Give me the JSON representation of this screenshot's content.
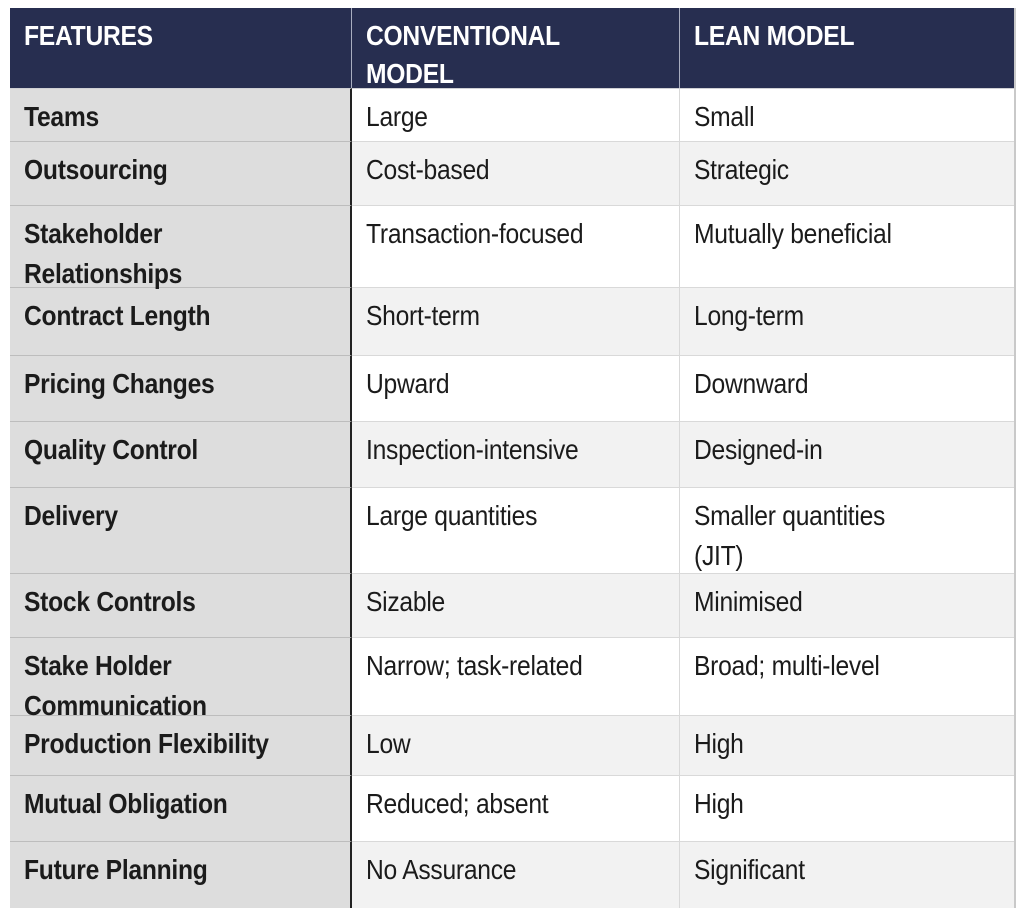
{
  "chart_data": {
    "type": "table",
    "title": "Conventional Model vs Lean Model feature comparison",
    "columns": [
      "FEATURES",
      "CONVENTIONAL MODEL",
      "LEAN MODEL"
    ],
    "header_display": [
      "FEATURES",
      "CONVENTIONAL\nMODEL",
      "LEAN MODEL"
    ],
    "rows": [
      {
        "feature": "Teams",
        "conventional": "Large",
        "lean": "Small"
      },
      {
        "feature": "Outsourcing",
        "conventional": "Cost-based",
        "lean": "Strategic"
      },
      {
        "feature": "Stakeholder\nRelationships",
        "conventional": "Transaction-focused",
        "lean": "Mutually beneficial"
      },
      {
        "feature": "Contract Length",
        "conventional": "Short-term",
        "lean": "Long-term"
      },
      {
        "feature": "Pricing Changes",
        "conventional": "Upward",
        "lean": "Downward"
      },
      {
        "feature": "Quality Control",
        "conventional": "Inspection-intensive",
        "lean": "Designed-in"
      },
      {
        "feature": "Delivery",
        "conventional": "Large quantities",
        "lean": "Smaller quantities\n(JIT)"
      },
      {
        "feature": "Stock Controls",
        "conventional": "Sizable",
        "lean": "Minimised"
      },
      {
        "feature": "Stake Holder\nCommunication",
        "conventional": "Narrow; task-related",
        "lean": "Broad; multi-level"
      },
      {
        "feature": "Production Flexibility",
        "conventional": "Low",
        "lean": "High"
      },
      {
        "feature": "Mutual Obligation",
        "conventional": "Reduced; absent",
        "lean": "High"
      },
      {
        "feature": "Future Planning",
        "conventional": "No Assurance",
        "lean": "Significant"
      }
    ],
    "layout_hints": {
      "header_position": "top",
      "grid": "on",
      "striped_rows": true
    }
  },
  "colors": {
    "header_bg": "#272e50",
    "header_text": "#ffffff",
    "feature_column_bg": "#dddddd",
    "row_bg": "#ffffff",
    "row_alt_bg": "#f2f2f2",
    "text": "#1b1b1b",
    "divider_dark": "#222222",
    "header_separator": "#a9aec0",
    "row_separator_feature": "#bdbdbd",
    "row_separator_data": "#d9d9d9",
    "outer_border": "#c9c9c9"
  }
}
